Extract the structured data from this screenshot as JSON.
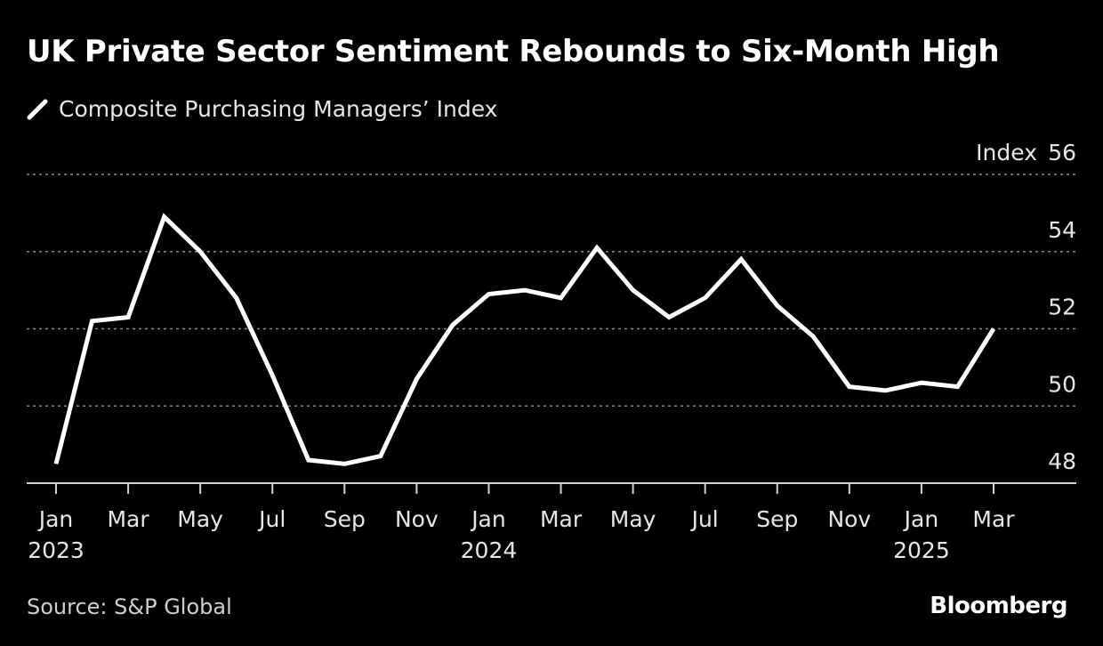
{
  "title": "UK Private Sector Sentiment Rebounds to Six-Month High",
  "source": "Source: S&P Global",
  "brand": "Bloomberg",
  "colors": {
    "background": "#000000",
    "line": "#ffffff",
    "grid": "#8a8a8a",
    "text": "#e6e6e6"
  },
  "chart_data": {
    "type": "line",
    "series": [
      {
        "name": "Composite Purchasing Managers’ Index",
        "x": [
          "2023-01",
          "2023-02",
          "2023-03",
          "2023-04",
          "2023-05",
          "2023-06",
          "2023-07",
          "2023-08",
          "2023-09",
          "2023-10",
          "2023-11",
          "2023-12",
          "2024-01",
          "2024-02",
          "2024-03",
          "2024-04",
          "2024-05",
          "2024-06",
          "2024-07",
          "2024-08",
          "2024-09",
          "2024-10",
          "2024-11",
          "2024-12",
          "2025-01",
          "2025-02",
          "2025-03"
        ],
        "values": [
          48.5,
          52.2,
          52.3,
          54.9,
          54.0,
          52.8,
          50.8,
          48.6,
          48.5,
          48.7,
          50.7,
          52.1,
          52.9,
          53.0,
          52.8,
          54.1,
          53.0,
          52.3,
          52.8,
          53.8,
          52.6,
          51.8,
          50.5,
          50.4,
          50.6,
          50.5,
          52.0
        ]
      }
    ],
    "y_axis": {
      "label": "Index",
      "ticks": [
        48,
        50,
        52,
        54,
        56
      ],
      "range": [
        48,
        56
      ],
      "position": "right"
    },
    "x_axis": {
      "ticks": [
        {
          "label": "Jan",
          "year": "2023",
          "index": 0
        },
        {
          "label": "Mar",
          "year": "",
          "index": 2
        },
        {
          "label": "May",
          "year": "",
          "index": 4
        },
        {
          "label": "Jul",
          "year": "",
          "index": 6
        },
        {
          "label": "Sep",
          "year": "",
          "index": 8
        },
        {
          "label": "Nov",
          "year": "",
          "index": 10
        },
        {
          "label": "Jan",
          "year": "2024",
          "index": 12
        },
        {
          "label": "Mar",
          "year": "",
          "index": 14
        },
        {
          "label": "May",
          "year": "",
          "index": 16
        },
        {
          "label": "Jul",
          "year": "",
          "index": 18
        },
        {
          "label": "Sep",
          "year": "",
          "index": 20
        },
        {
          "label": "Nov",
          "year": "",
          "index": 22
        },
        {
          "label": "Jan",
          "year": "2025",
          "index": 24
        },
        {
          "label": "Mar",
          "year": "",
          "index": 26
        }
      ]
    },
    "grid": true,
    "legend": "top-left"
  }
}
